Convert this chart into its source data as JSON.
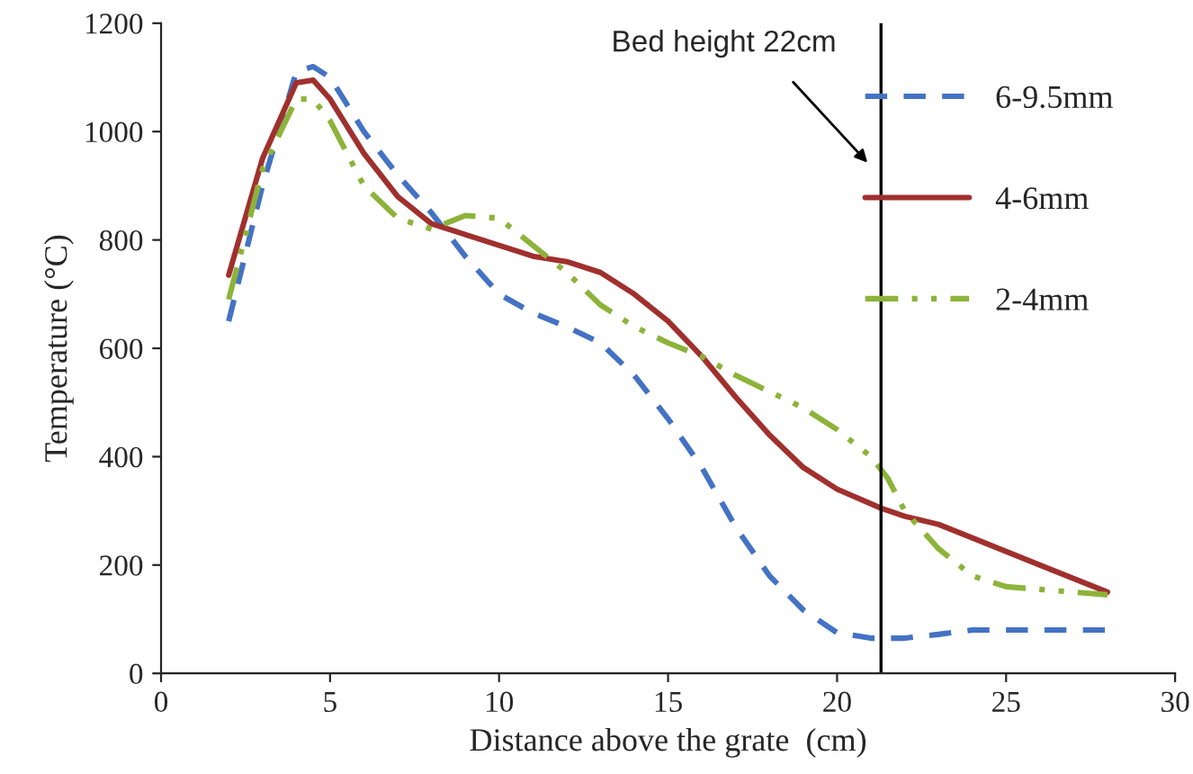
{
  "chart_data": {
    "type": "line",
    "xlabel": "Distance above the grate  (cm)",
    "ylabel": "Temperature (°C)",
    "xlim": [
      0,
      30
    ],
    "xticks": [
      0,
      5,
      10,
      15,
      20,
      25,
      30
    ],
    "ylim": [
      0,
      1200
    ],
    "yticks": [
      0,
      200,
      400,
      600,
      800,
      1000,
      1200
    ],
    "grid": false,
    "legend": "top right",
    "marker": "none",
    "series": [
      {
        "name": "6-9.5mm",
        "color": "#4472c4",
        "line_style": "dashed",
        "x": [
          2,
          3,
          4,
          4.5,
          5,
          6,
          7,
          8,
          9,
          10,
          11,
          12,
          13,
          14,
          15,
          16,
          17,
          18,
          19,
          20,
          21,
          22,
          23,
          24,
          26,
          28
        ],
        "values": [
          650,
          900,
          1110,
          1120,
          1100,
          1000,
          920,
          850,
          770,
          700,
          665,
          640,
          610,
          550,
          470,
          380,
          270,
          180,
          117,
          75,
          65,
          65,
          72,
          80,
          80,
          80
        ]
      },
      {
        "name": "4-6mm",
        "color": "#a0302e",
        "line_style": "solid",
        "x": [
          2,
          3,
          4,
          4.5,
          5,
          6,
          7,
          8,
          9,
          10,
          11,
          12,
          13,
          14,
          15,
          16,
          17,
          18,
          19,
          20,
          21.3,
          22,
          23,
          24,
          26,
          28
        ],
        "values": [
          735,
          950,
          1090,
          1095,
          1060,
          960,
          880,
          830,
          810,
          790,
          770,
          760,
          740,
          700,
          650,
          585,
          510,
          440,
          380,
          340,
          305,
          290,
          275,
          250,
          200,
          150
        ]
      },
      {
        "name": "2-4mm",
        "color": "#8db33a",
        "line_style": "dotted",
        "x": [
          2,
          3,
          4,
          4.5,
          5,
          6,
          7,
          8,
          9,
          10,
          11,
          12,
          13,
          14,
          15,
          16,
          17,
          18,
          19,
          20,
          21,
          21.5,
          22,
          23,
          24,
          25,
          26,
          28
        ],
        "values": [
          690,
          930,
          1060,
          1060,
          1020,
          900,
          840,
          820,
          845,
          840,
          790,
          740,
          680,
          640,
          610,
          585,
          550,
          520,
          490,
          450,
          400,
          360,
          300,
          230,
          180,
          160,
          155,
          145
        ]
      }
    ],
    "ref_lines": [
      {
        "axis": "x",
        "value": 21.3,
        "color": "#000000",
        "line_style": "solid"
      }
    ],
    "annotations": [
      "Bed height 22cm"
    ]
  }
}
